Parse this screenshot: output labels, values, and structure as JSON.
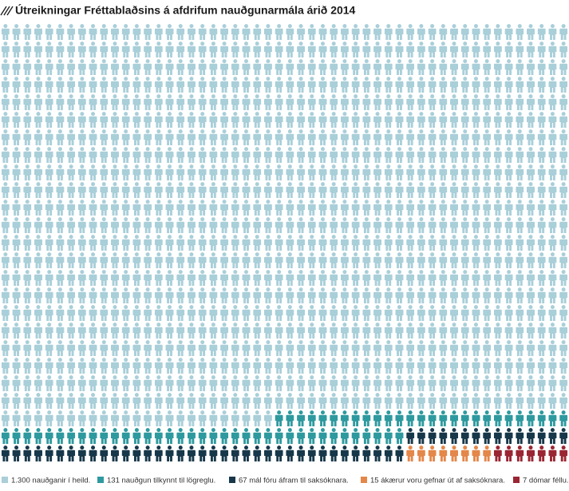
{
  "chart_data": {
    "type": "pictogram",
    "title": "Útreikningar Fréttablaðsins á afdrifum nauðgunarmála árið 2014",
    "series": [
      {
        "name": "1.300 nauðganir í heild.",
        "color": "#a9cfd9",
        "value": 1300
      },
      {
        "name": "131 nauðgun tilkynnt til lögreglu.",
        "color": "#2e9a9f",
        "value": 131
      },
      {
        "name": "67 mál fóru áfram til saksóknara.",
        "color": "#17384a",
        "value": 67
      },
      {
        "name": "15 ákærur voru gefnar út af saksóknara.",
        "color": "#e4874a",
        "value": 15
      },
      {
        "name": "7 dómar féllu.",
        "color": "#992632",
        "value": 7
      }
    ]
  }
}
